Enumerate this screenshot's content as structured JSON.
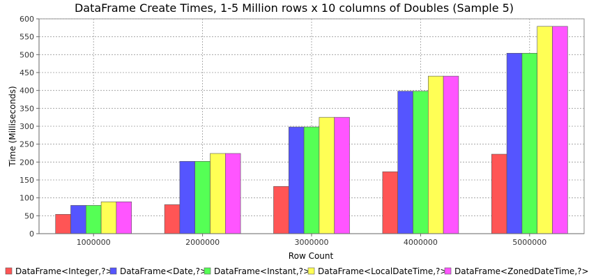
{
  "chart_data": {
    "type": "bar",
    "title": "DataFrame Create Times, 1-5 Million rows x 10 columns of Doubles (Sample 5)",
    "xlabel": "Row Count",
    "ylabel": "Time (Milliseconds)",
    "categories": [
      "1000000",
      "2000000",
      "3000000",
      "4000000",
      "5000000"
    ],
    "ylim": [
      0,
      600
    ],
    "yticks": [
      0,
      50,
      100,
      150,
      200,
      250,
      300,
      350,
      400,
      450,
      500,
      550,
      600
    ],
    "grid": true,
    "legend_position": "bottom",
    "series": [
      {
        "name": "DataFrame<Integer,?>",
        "color": "#ff5555",
        "values": [
          54,
          81,
          132,
          173,
          222
        ]
      },
      {
        "name": "DataFrame<Date,?>",
        "color": "#5555ff",
        "values": [
          79,
          202,
          298,
          398,
          504
        ]
      },
      {
        "name": "DataFrame<Instant,?>",
        "color": "#55ff55",
        "values": [
          79,
          202,
          298,
          398,
          504
        ]
      },
      {
        "name": "DataFrame<LocalDateTime,?>",
        "color": "#ffff55",
        "values": [
          89,
          224,
          325,
          440,
          579
        ]
      },
      {
        "name": "DataFrame<ZonedDateTime,?>",
        "color": "#ff55ff",
        "values": [
          89,
          224,
          325,
          440,
          579
        ]
      }
    ]
  }
}
